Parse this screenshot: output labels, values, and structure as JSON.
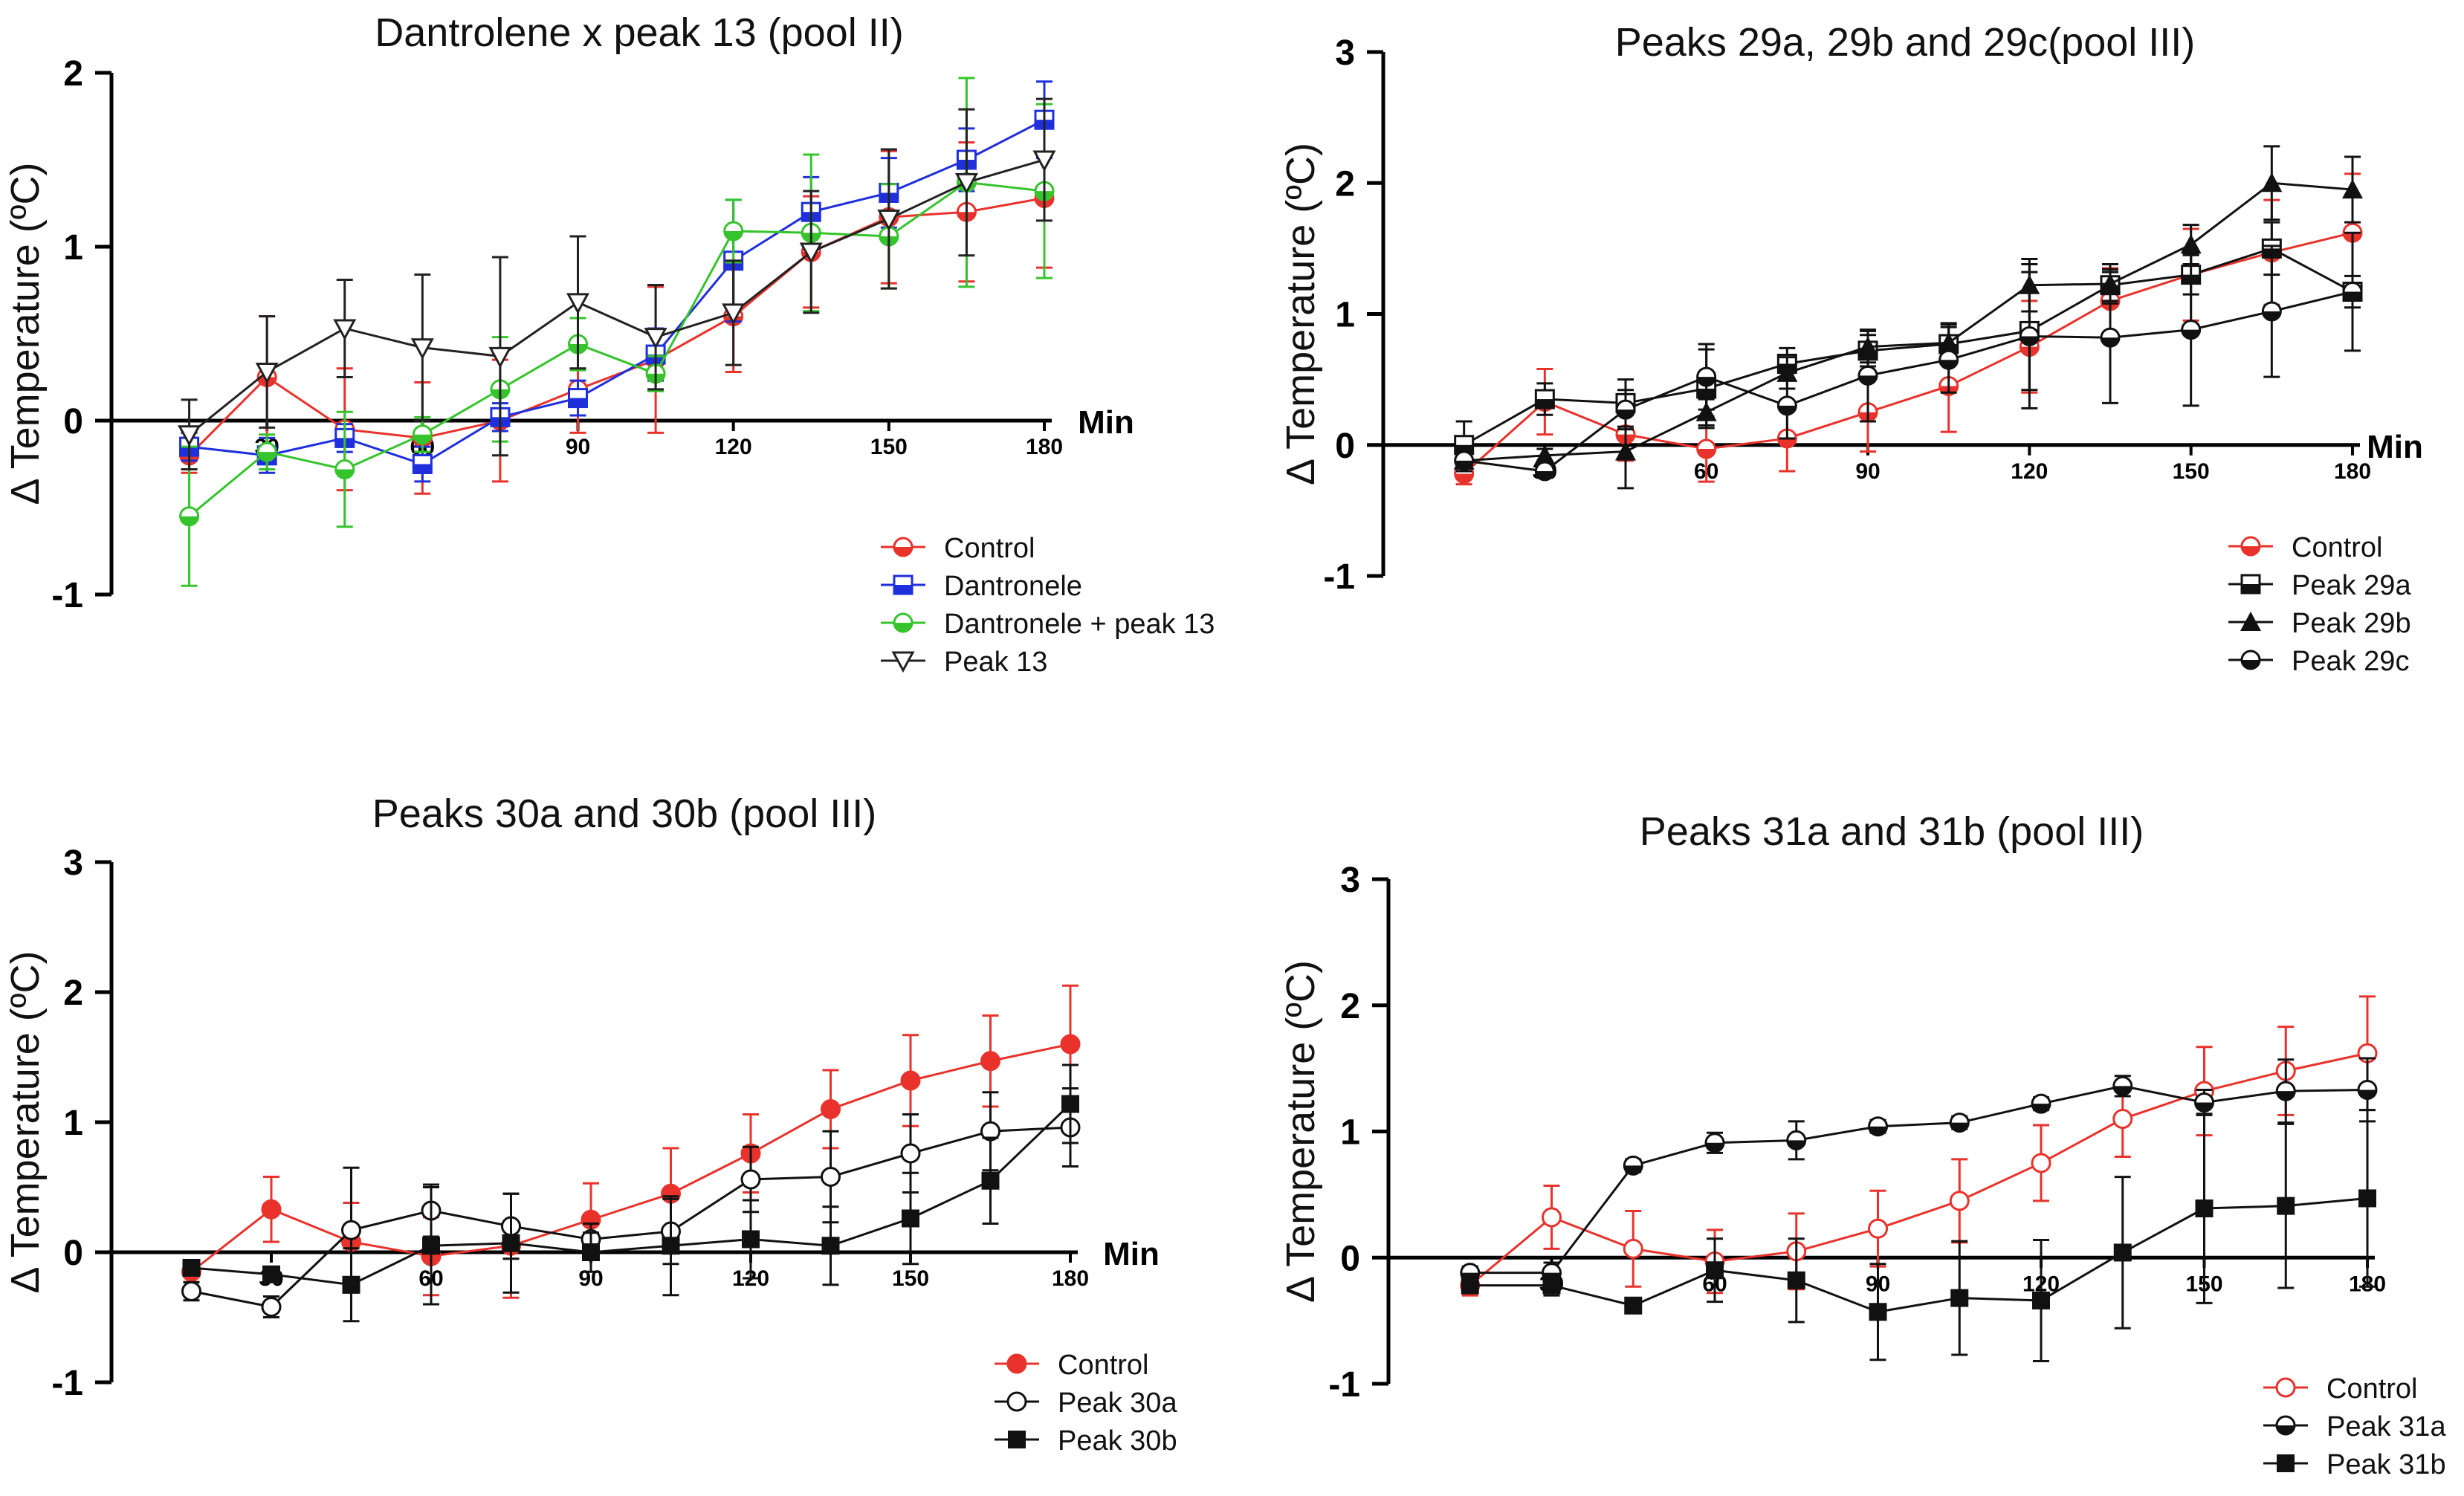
{
  "figure": {
    "description_label": "Four line charts of temperature change over time"
  },
  "chart_data": [
    {
      "type": "line",
      "title": "Dantrolene x peak 13 (pool II)",
      "ylabel": "Δ Temperature (ºC)",
      "xlabel": "Min",
      "xlim": [
        0,
        180
      ],
      "ylim": [
        -1,
        2
      ],
      "xticks": [
        30,
        60,
        90,
        120,
        150,
        180
      ],
      "yticks": [
        -1,
        0,
        1,
        2
      ],
      "x": [
        15,
        30,
        45,
        60,
        75,
        90,
        105,
        120,
        135,
        150,
        165,
        180
      ],
      "series": [
        {
          "name": "Control",
          "color": "#e8322b",
          "marker": "halfcircle",
          "values": [
            -0.2,
            0.25,
            -0.05,
            -0.1,
            0.0,
            0.18,
            0.35,
            0.6,
            0.97,
            1.17,
            1.2,
            1.28
          ],
          "errors": [
            0.1,
            0.35,
            0.35,
            0.32,
            0.35,
            0.25,
            0.42,
            0.32,
            0.32,
            0.38,
            0.4,
            0.4
          ]
        },
        {
          "name": "Dantronele",
          "color": "#1f2fdc",
          "marker": "halfsquare",
          "values": [
            -0.15,
            -0.2,
            -0.1,
            -0.25,
            0.02,
            0.13,
            0.38,
            0.92,
            1.2,
            1.31,
            1.5,
            1.73
          ],
          "errors": [
            0.08,
            0.1,
            0.08,
            0.1,
            0.08,
            0.1,
            0.15,
            0.35,
            0.2,
            0.2,
            0.18,
            0.22
          ]
        },
        {
          "name": "Dantronele + peak 13",
          "color": "#35c42c",
          "marker": "halfcircle",
          "values": [
            -0.55,
            -0.18,
            -0.28,
            -0.08,
            0.18,
            0.44,
            0.27,
            1.09,
            1.08,
            1.06,
            1.37,
            1.32
          ],
          "errors": [
            0.4,
            0.1,
            0.33,
            0.1,
            0.3,
            0.15,
            0.1,
            0.18,
            0.45,
            0.3,
            0.6,
            0.5
          ]
        },
        {
          "name": "Peak 13",
          "color": "#222222",
          "marker": "triangle-down-open",
          "values": [
            -0.08,
            0.28,
            0.53,
            0.42,
            0.37,
            0.68,
            0.48,
            0.62,
            0.97,
            1.16,
            1.37,
            1.5
          ],
          "errors": [
            0.2,
            0.32,
            0.28,
            0.42,
            0.57,
            0.38,
            0.3,
            0.3,
            0.35,
            0.4,
            0.42,
            0.35
          ]
        }
      ],
      "legend": {
        "position": "bottom-right",
        "entries": [
          "Control",
          "Dantronele",
          "Dantronele + peak 13",
          "Peak 13"
        ]
      }
    },
    {
      "type": "line",
      "title": "Peaks 29a, 29b and 29c(pool III)",
      "ylabel": "Δ Temperature (ºC)",
      "xlabel": "Min",
      "xlim": [
        0,
        180
      ],
      "ylim": [
        -1,
        3
      ],
      "xticks": [
        30,
        60,
        90,
        120,
        150,
        180
      ],
      "yticks": [
        -1,
        0,
        1,
        2,
        3
      ],
      "x": [
        15,
        30,
        45,
        60,
        75,
        90,
        105,
        120,
        135,
        150,
        165,
        180
      ],
      "series": [
        {
          "name": "Control",
          "color": "#e8322b",
          "marker": "halfcircle",
          "values": [
            -0.22,
            0.33,
            0.08,
            -0.03,
            0.05,
            0.25,
            0.45,
            0.75,
            1.1,
            1.3,
            1.47,
            1.62
          ],
          "errors": [
            0.08,
            0.25,
            0.2,
            0.25,
            0.25,
            0.3,
            0.35,
            0.35,
            0.25,
            0.35,
            0.4,
            0.45
          ]
        },
        {
          "name": "Peak 29a",
          "color": "#111111",
          "marker": "halfsquare",
          "values": [
            0.0,
            0.35,
            0.32,
            0.43,
            0.62,
            0.72,
            0.77,
            0.87,
            1.22,
            1.3,
            1.5,
            1.17
          ],
          "errors": [
            0.18,
            0.12,
            0.18,
            0.3,
            0.12,
            0.12,
            0.15,
            0.45,
            0.12,
            0.15,
            0.2,
            0.12
          ]
        },
        {
          "name": "Peak 29b",
          "color": "#111111",
          "marker": "triangle-filled",
          "values": [
            -0.12,
            -0.08,
            -0.05,
            0.25,
            0.55,
            0.75,
            0.78,
            1.22,
            1.23,
            1.53,
            2.0,
            1.95
          ],
          "errors": [
            0.05,
            0.05,
            0.28,
            0.1,
            0.12,
            0.12,
            0.15,
            0.2,
            0.15,
            0.15,
            0.28,
            0.25
          ]
        },
        {
          "name": "Peak 29c",
          "color": "#111111",
          "marker": "halfcircle",
          "values": [
            -0.12,
            -0.2,
            0.27,
            0.52,
            0.3,
            0.53,
            0.65,
            0.83,
            0.82,
            0.88,
            1.02,
            1.17
          ],
          "errors": [
            0.08,
            0.05,
            0.15,
            0.25,
            0.25,
            0.35,
            0.25,
            0.55,
            0.5,
            0.58,
            0.5,
            0.45
          ]
        }
      ],
      "legend": {
        "position": "bottom-right",
        "entries": [
          "Control",
          "Peak 29a",
          "Peak 29b",
          "Peak 29c"
        ]
      }
    },
    {
      "type": "line",
      "title": "Peaks 30a and 30b (pool III)",
      "ylabel": "Δ Temperature (ºC)",
      "xlabel": "Min",
      "xlim": [
        0,
        180
      ],
      "ylim": [
        -1,
        3
      ],
      "xticks": [
        30,
        60,
        90,
        120,
        150,
        180
      ],
      "yticks": [
        -1,
        0,
        1,
        2,
        3
      ],
      "x": [
        15,
        30,
        45,
        60,
        75,
        90,
        105,
        120,
        135,
        150,
        165,
        180
      ],
      "series": [
        {
          "name": "Control",
          "color": "#e8322b",
          "marker": "circle-filled",
          "values": [
            -0.15,
            0.33,
            0.08,
            -0.03,
            0.05,
            0.25,
            0.45,
            0.76,
            1.1,
            1.32,
            1.47,
            1.6
          ],
          "errors": [
            0.08,
            0.25,
            0.3,
            0.3,
            0.4,
            0.28,
            0.35,
            0.3,
            0.3,
            0.35,
            0.35,
            0.45
          ]
        },
        {
          "name": "Peak 30a",
          "color": "#111111",
          "marker": "circle-open",
          "values": [
            -0.3,
            -0.42,
            0.17,
            0.32,
            0.2,
            0.1,
            0.16,
            0.56,
            0.58,
            0.76,
            0.93,
            0.96
          ],
          "errors": [
            0.07,
            0.08,
            0.48,
            0.2,
            0.25,
            0.12,
            0.25,
            0.25,
            0.35,
            0.3,
            0.3,
            0.3
          ]
        },
        {
          "name": "Peak 30b",
          "color": "#111111",
          "marker": "square-filled",
          "values": [
            -0.12,
            -0.17,
            -0.25,
            0.05,
            0.07,
            0.0,
            0.05,
            0.1,
            0.05,
            0.26,
            0.55,
            1.14
          ],
          "errors": [
            0.05,
            0.05,
            0.28,
            0.45,
            0.38,
            0.15,
            0.38,
            0.3,
            0.3,
            0.35,
            0.33,
            0.3
          ]
        }
      ],
      "legend": {
        "position": "bottom-right",
        "entries": [
          "Control",
          "Peak 30a",
          "Peak 30b"
        ]
      }
    },
    {
      "type": "line",
      "title": "Peaks 31a and 31b (pool III)",
      "ylabel": "Δ Temperature (ºC)",
      "xlabel": "",
      "xlim": [
        0,
        180
      ],
      "ylim": [
        -1,
        3
      ],
      "xticks": [
        30,
        60,
        90,
        120,
        150,
        180
      ],
      "yticks": [
        -1,
        0,
        1,
        2,
        3
      ],
      "x": [
        15,
        30,
        45,
        60,
        75,
        90,
        105,
        120,
        135,
        150,
        165,
        180
      ],
      "series": [
        {
          "name": "Control",
          "color": "#e8322b",
          "marker": "circle-open",
          "values": [
            -0.22,
            0.32,
            0.07,
            -0.03,
            0.05,
            0.23,
            0.45,
            0.75,
            1.1,
            1.32,
            1.48,
            1.62
          ],
          "errors": [
            0.08,
            0.25,
            0.3,
            0.25,
            0.3,
            0.3,
            0.33,
            0.3,
            0.3,
            0.35,
            0.35,
            0.45
          ]
        },
        {
          "name": "Peak 31a",
          "color": "#111111",
          "marker": "halfcircle",
          "values": [
            -0.12,
            -0.12,
            0.73,
            0.91,
            0.93,
            1.04,
            1.07,
            1.22,
            1.36,
            1.23,
            1.32,
            1.33
          ],
          "errors": [
            0.05,
            0.08,
            0.05,
            0.08,
            0.15,
            0.05,
            0.05,
            0.05,
            0.08,
            0.1,
            0.25,
            0.25
          ]
        },
        {
          "name": "Peak 31b",
          "color": "#111111",
          "marker": "square-filled",
          "values": [
            -0.22,
            -0.22,
            -0.38,
            -0.1,
            -0.18,
            -0.43,
            -0.32,
            -0.34,
            0.04,
            0.39,
            0.41,
            0.47
          ],
          "errors": [
            0.05,
            0.08,
            0.05,
            0.25,
            0.33,
            0.38,
            0.45,
            0.48,
            0.6,
            0.75,
            0.65,
            0.7
          ]
        }
      ],
      "legend": {
        "position": "bottom-right",
        "entries": [
          "Control",
          "Peak 31a",
          "Peak 31b"
        ]
      }
    }
  ]
}
